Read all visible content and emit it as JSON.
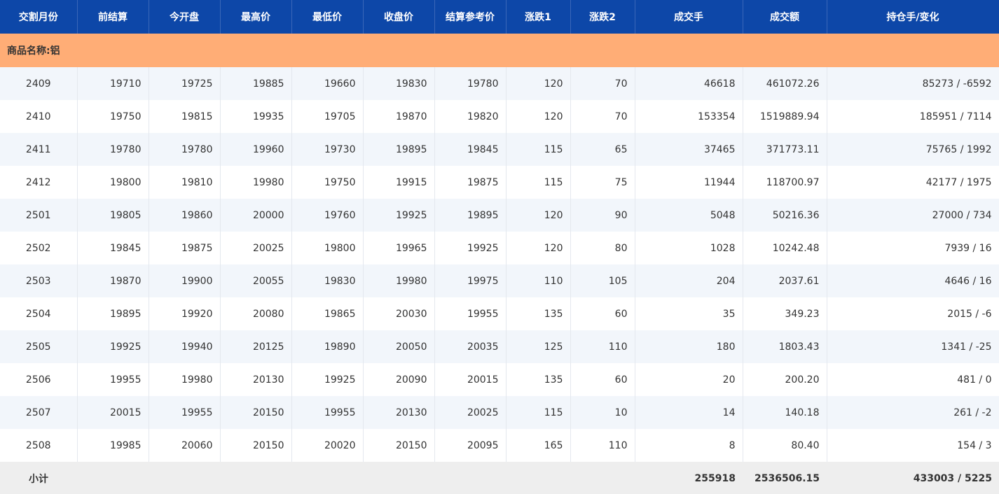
{
  "table": {
    "columns": [
      "交割月份",
      "前结算",
      "今开盘",
      "最高价",
      "最低价",
      "收盘价",
      "结算参考价",
      "涨跌1",
      "涨跌2",
      "成交手",
      "成交额",
      "持仓手/变化"
    ],
    "section_label": "商品名称:铝",
    "rows": [
      [
        "2409",
        "19710",
        "19725",
        "19885",
        "19660",
        "19830",
        "19780",
        "120",
        "70",
        "46618",
        "461072.26",
        "85273 / -6592"
      ],
      [
        "2410",
        "19750",
        "19815",
        "19935",
        "19705",
        "19870",
        "19820",
        "120",
        "70",
        "153354",
        "1519889.94",
        "185951 / 7114"
      ],
      [
        "2411",
        "19780",
        "19780",
        "19960",
        "19730",
        "19895",
        "19845",
        "115",
        "65",
        "37465",
        "371773.11",
        "75765 / 1992"
      ],
      [
        "2412",
        "19800",
        "19810",
        "19980",
        "19750",
        "19915",
        "19875",
        "115",
        "75",
        "11944",
        "118700.97",
        "42177 / 1975"
      ],
      [
        "2501",
        "19805",
        "19860",
        "20000",
        "19760",
        "19925",
        "19895",
        "120",
        "90",
        "5048",
        "50216.36",
        "27000 / 734"
      ],
      [
        "2502",
        "19845",
        "19875",
        "20025",
        "19800",
        "19965",
        "19925",
        "120",
        "80",
        "1028",
        "10242.48",
        "7939 / 16"
      ],
      [
        "2503",
        "19870",
        "19900",
        "20055",
        "19830",
        "19980",
        "19975",
        "110",
        "105",
        "204",
        "2037.61",
        "4646 / 16"
      ],
      [
        "2504",
        "19895",
        "19920",
        "20080",
        "19865",
        "20030",
        "19955",
        "135",
        "60",
        "35",
        "349.23",
        "2015 / -6"
      ],
      [
        "2505",
        "19925",
        "19940",
        "20125",
        "19890",
        "20050",
        "20035",
        "125",
        "110",
        "180",
        "1803.43",
        "1341 / -25"
      ],
      [
        "2506",
        "19955",
        "19980",
        "20130",
        "19925",
        "20090",
        "20015",
        "135",
        "60",
        "20",
        "200.20",
        "481 / 0"
      ],
      [
        "2507",
        "20015",
        "19955",
        "20150",
        "19955",
        "20130",
        "20025",
        "115",
        "10",
        "14",
        "140.18",
        "261 / -2"
      ],
      [
        "2508",
        "19985",
        "20060",
        "20150",
        "20020",
        "20150",
        "20095",
        "165",
        "110",
        "8",
        "80.40",
        "154 / 3"
      ]
    ],
    "subtotal": {
      "label": "小计",
      "volume": "255918",
      "turnover": "2536506.15",
      "open_interest": "433003 / 5225"
    }
  }
}
